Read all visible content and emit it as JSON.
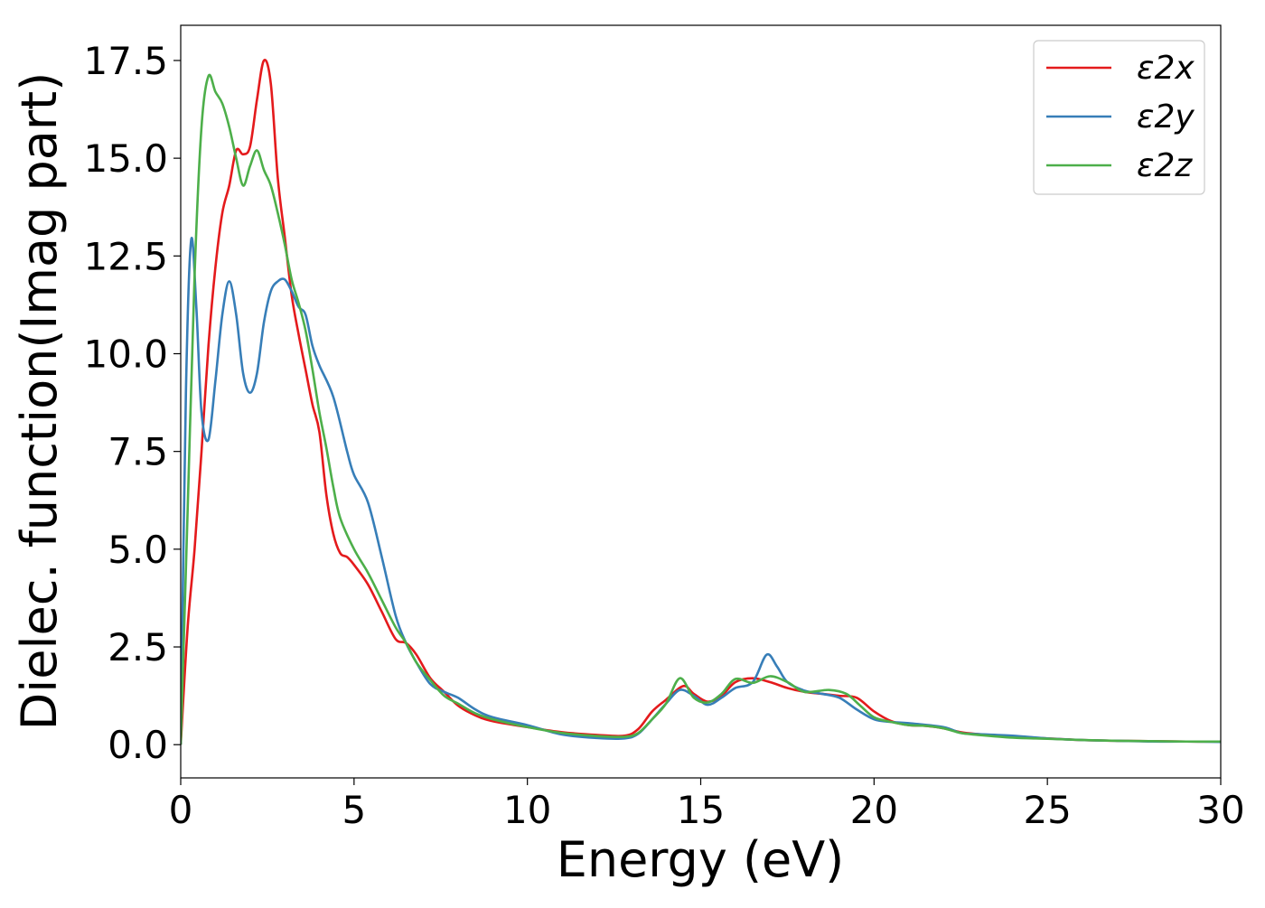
{
  "chart_data": {
    "type": "line",
    "title": "",
    "xlabel": "Energy (eV)",
    "ylabel": "Dielec. function(Imag part)",
    "xlim": [
      0,
      30
    ],
    "ylim": [
      -0.85,
      18.4
    ],
    "xticks": [
      0,
      5,
      10,
      15,
      20,
      25,
      30
    ],
    "xtick_labels": [
      "0",
      "5",
      "10",
      "15",
      "20",
      "25",
      "30"
    ],
    "yticks": [
      0,
      2.5,
      5,
      7.5,
      10,
      12.5,
      15,
      17.5
    ],
    "ytick_labels": [
      "0.0",
      "2.5",
      "5.0",
      "7.5",
      "10.0",
      "12.5",
      "15.0",
      "17.5"
    ],
    "grid": false,
    "legend_position": "top-right",
    "series": [
      {
        "name": "ε2x",
        "color": "#e41a1c",
        "points": [
          [
            0,
            0
          ],
          [
            0.2,
            3.0
          ],
          [
            0.4,
            5.0
          ],
          [
            0.6,
            7.5
          ],
          [
            0.8,
            10.2
          ],
          [
            1.0,
            12.2
          ],
          [
            1.2,
            13.6
          ],
          [
            1.4,
            14.3
          ],
          [
            1.6,
            15.2
          ],
          [
            1.8,
            15.1
          ],
          [
            2.0,
            15.3
          ],
          [
            2.2,
            16.5
          ],
          [
            2.4,
            17.5
          ],
          [
            2.6,
            16.9
          ],
          [
            2.8,
            14.5
          ],
          [
            3.0,
            13.0
          ],
          [
            3.2,
            11.5
          ],
          [
            3.4,
            10.5
          ],
          [
            3.6,
            9.6
          ],
          [
            3.8,
            8.7
          ],
          [
            4.0,
            8.0
          ],
          [
            4.2,
            6.4
          ],
          [
            4.4,
            5.4
          ],
          [
            4.6,
            4.9
          ],
          [
            4.8,
            4.8
          ],
          [
            5.0,
            4.6
          ],
          [
            5.4,
            4.1
          ],
          [
            5.8,
            3.4
          ],
          [
            6.2,
            2.7
          ],
          [
            6.5,
            2.6
          ],
          [
            6.8,
            2.3
          ],
          [
            7.2,
            1.7
          ],
          [
            7.6,
            1.35
          ],
          [
            8.0,
            1.0
          ],
          [
            8.5,
            0.75
          ],
          [
            9.0,
            0.6
          ],
          [
            10.0,
            0.45
          ],
          [
            11.0,
            0.32
          ],
          [
            12.0,
            0.25
          ],
          [
            12.8,
            0.23
          ],
          [
            13.2,
            0.4
          ],
          [
            13.6,
            0.85
          ],
          [
            14.0,
            1.15
          ],
          [
            14.5,
            1.5
          ],
          [
            14.8,
            1.3
          ],
          [
            15.2,
            1.1
          ],
          [
            15.6,
            1.25
          ],
          [
            16.0,
            1.6
          ],
          [
            16.5,
            1.7
          ],
          [
            17.0,
            1.6
          ],
          [
            17.5,
            1.45
          ],
          [
            18.0,
            1.35
          ],
          [
            18.5,
            1.3
          ],
          [
            19.0,
            1.25
          ],
          [
            19.5,
            1.2
          ],
          [
            20.0,
            0.85
          ],
          [
            20.5,
            0.6
          ],
          [
            21.0,
            0.5
          ],
          [
            21.5,
            0.48
          ],
          [
            22.0,
            0.42
          ],
          [
            22.5,
            0.32
          ],
          [
            23.0,
            0.27
          ],
          [
            24.0,
            0.2
          ],
          [
            25.0,
            0.16
          ],
          [
            26.0,
            0.12
          ],
          [
            27.0,
            0.1
          ],
          [
            28.0,
            0.09
          ],
          [
            29.0,
            0.08
          ],
          [
            30.0,
            0.08
          ]
        ]
      },
      {
        "name": "ε2y",
        "color": "#377eb8",
        "points": [
          [
            0,
            0
          ],
          [
            0.15,
            9.0
          ],
          [
            0.3,
            12.9
          ],
          [
            0.45,
            11.2
          ],
          [
            0.6,
            8.5
          ],
          [
            0.8,
            7.8
          ],
          [
            1.0,
            9.3
          ],
          [
            1.2,
            11.0
          ],
          [
            1.4,
            11.85
          ],
          [
            1.6,
            11.0
          ],
          [
            1.8,
            9.5
          ],
          [
            2.0,
            9.0
          ],
          [
            2.2,
            9.5
          ],
          [
            2.4,
            10.8
          ],
          [
            2.6,
            11.6
          ],
          [
            2.8,
            11.85
          ],
          [
            3.0,
            11.9
          ],
          [
            3.2,
            11.6
          ],
          [
            3.4,
            11.2
          ],
          [
            3.6,
            11.0
          ],
          [
            3.8,
            10.2
          ],
          [
            4.0,
            9.7
          ],
          [
            4.4,
            8.9
          ],
          [
            4.8,
            7.5
          ],
          [
            5.0,
            6.9
          ],
          [
            5.4,
            6.2
          ],
          [
            5.8,
            4.8
          ],
          [
            6.2,
            3.3
          ],
          [
            6.5,
            2.6
          ],
          [
            6.8,
            2.1
          ],
          [
            7.2,
            1.55
          ],
          [
            7.6,
            1.35
          ],
          [
            8.0,
            1.2
          ],
          [
            8.5,
            0.9
          ],
          [
            9.0,
            0.7
          ],
          [
            10.0,
            0.5
          ],
          [
            11.0,
            0.26
          ],
          [
            12.0,
            0.17
          ],
          [
            12.8,
            0.16
          ],
          [
            13.2,
            0.28
          ],
          [
            13.6,
            0.65
          ],
          [
            14.0,
            1.05
          ],
          [
            14.4,
            1.4
          ],
          [
            14.8,
            1.25
          ],
          [
            15.2,
            1.02
          ],
          [
            15.6,
            1.2
          ],
          [
            16.0,
            1.45
          ],
          [
            16.5,
            1.6
          ],
          [
            16.9,
            2.3
          ],
          [
            17.2,
            2.0
          ],
          [
            17.5,
            1.6
          ],
          [
            18.0,
            1.38
          ],
          [
            18.5,
            1.3
          ],
          [
            19.0,
            1.2
          ],
          [
            19.5,
            0.9
          ],
          [
            20.0,
            0.65
          ],
          [
            20.5,
            0.58
          ],
          [
            21.0,
            0.55
          ],
          [
            22.0,
            0.45
          ],
          [
            22.5,
            0.3
          ],
          [
            23.0,
            0.27
          ],
          [
            24.0,
            0.23
          ],
          [
            25.0,
            0.16
          ],
          [
            26.0,
            0.12
          ],
          [
            27.0,
            0.1
          ],
          [
            28.0,
            0.08
          ],
          [
            29.0,
            0.08
          ],
          [
            30.0,
            0.07
          ]
        ]
      },
      {
        "name": "ε2z",
        "color": "#4daf4a",
        "points": [
          [
            0,
            0
          ],
          [
            0.2,
            6.0
          ],
          [
            0.4,
            12.0
          ],
          [
            0.6,
            15.8
          ],
          [
            0.8,
            17.1
          ],
          [
            1.0,
            16.7
          ],
          [
            1.2,
            16.4
          ],
          [
            1.4,
            15.8
          ],
          [
            1.6,
            15.0
          ],
          [
            1.8,
            14.3
          ],
          [
            2.0,
            14.8
          ],
          [
            2.2,
            15.2
          ],
          [
            2.4,
            14.7
          ],
          [
            2.6,
            14.3
          ],
          [
            2.8,
            13.6
          ],
          [
            3.0,
            12.8
          ],
          [
            3.2,
            11.9
          ],
          [
            3.4,
            11.3
          ],
          [
            3.6,
            10.6
          ],
          [
            3.8,
            9.6
          ],
          [
            4.0,
            8.5
          ],
          [
            4.2,
            7.6
          ],
          [
            4.4,
            6.6
          ],
          [
            4.6,
            5.8
          ],
          [
            5.0,
            5.0
          ],
          [
            5.4,
            4.4
          ],
          [
            5.8,
            3.7
          ],
          [
            6.2,
            3.0
          ],
          [
            6.5,
            2.6
          ],
          [
            6.8,
            2.1
          ],
          [
            7.2,
            1.65
          ],
          [
            7.6,
            1.25
          ],
          [
            8.0,
            1.05
          ],
          [
            8.5,
            0.8
          ],
          [
            9.0,
            0.65
          ],
          [
            10.0,
            0.45
          ],
          [
            11.0,
            0.3
          ],
          [
            12.0,
            0.22
          ],
          [
            12.8,
            0.2
          ],
          [
            13.2,
            0.3
          ],
          [
            13.6,
            0.65
          ],
          [
            14.0,
            1.05
          ],
          [
            14.4,
            1.7
          ],
          [
            14.8,
            1.2
          ],
          [
            15.2,
            1.08
          ],
          [
            15.6,
            1.3
          ],
          [
            16.0,
            1.68
          ],
          [
            16.5,
            1.58
          ],
          [
            17.0,
            1.75
          ],
          [
            17.5,
            1.6
          ],
          [
            18.0,
            1.35
          ],
          [
            18.7,
            1.4
          ],
          [
            19.2,
            1.3
          ],
          [
            19.6,
            1.0
          ],
          [
            20.0,
            0.7
          ],
          [
            20.5,
            0.58
          ],
          [
            21.0,
            0.5
          ],
          [
            21.5,
            0.48
          ],
          [
            22.0,
            0.42
          ],
          [
            22.5,
            0.3
          ],
          [
            23.0,
            0.25
          ],
          [
            24.0,
            0.18
          ],
          [
            25.0,
            0.15
          ],
          [
            26.0,
            0.12
          ],
          [
            27.0,
            0.1
          ],
          [
            28.0,
            0.09
          ],
          [
            29.0,
            0.08
          ],
          [
            30.0,
            0.08
          ]
        ]
      }
    ]
  }
}
